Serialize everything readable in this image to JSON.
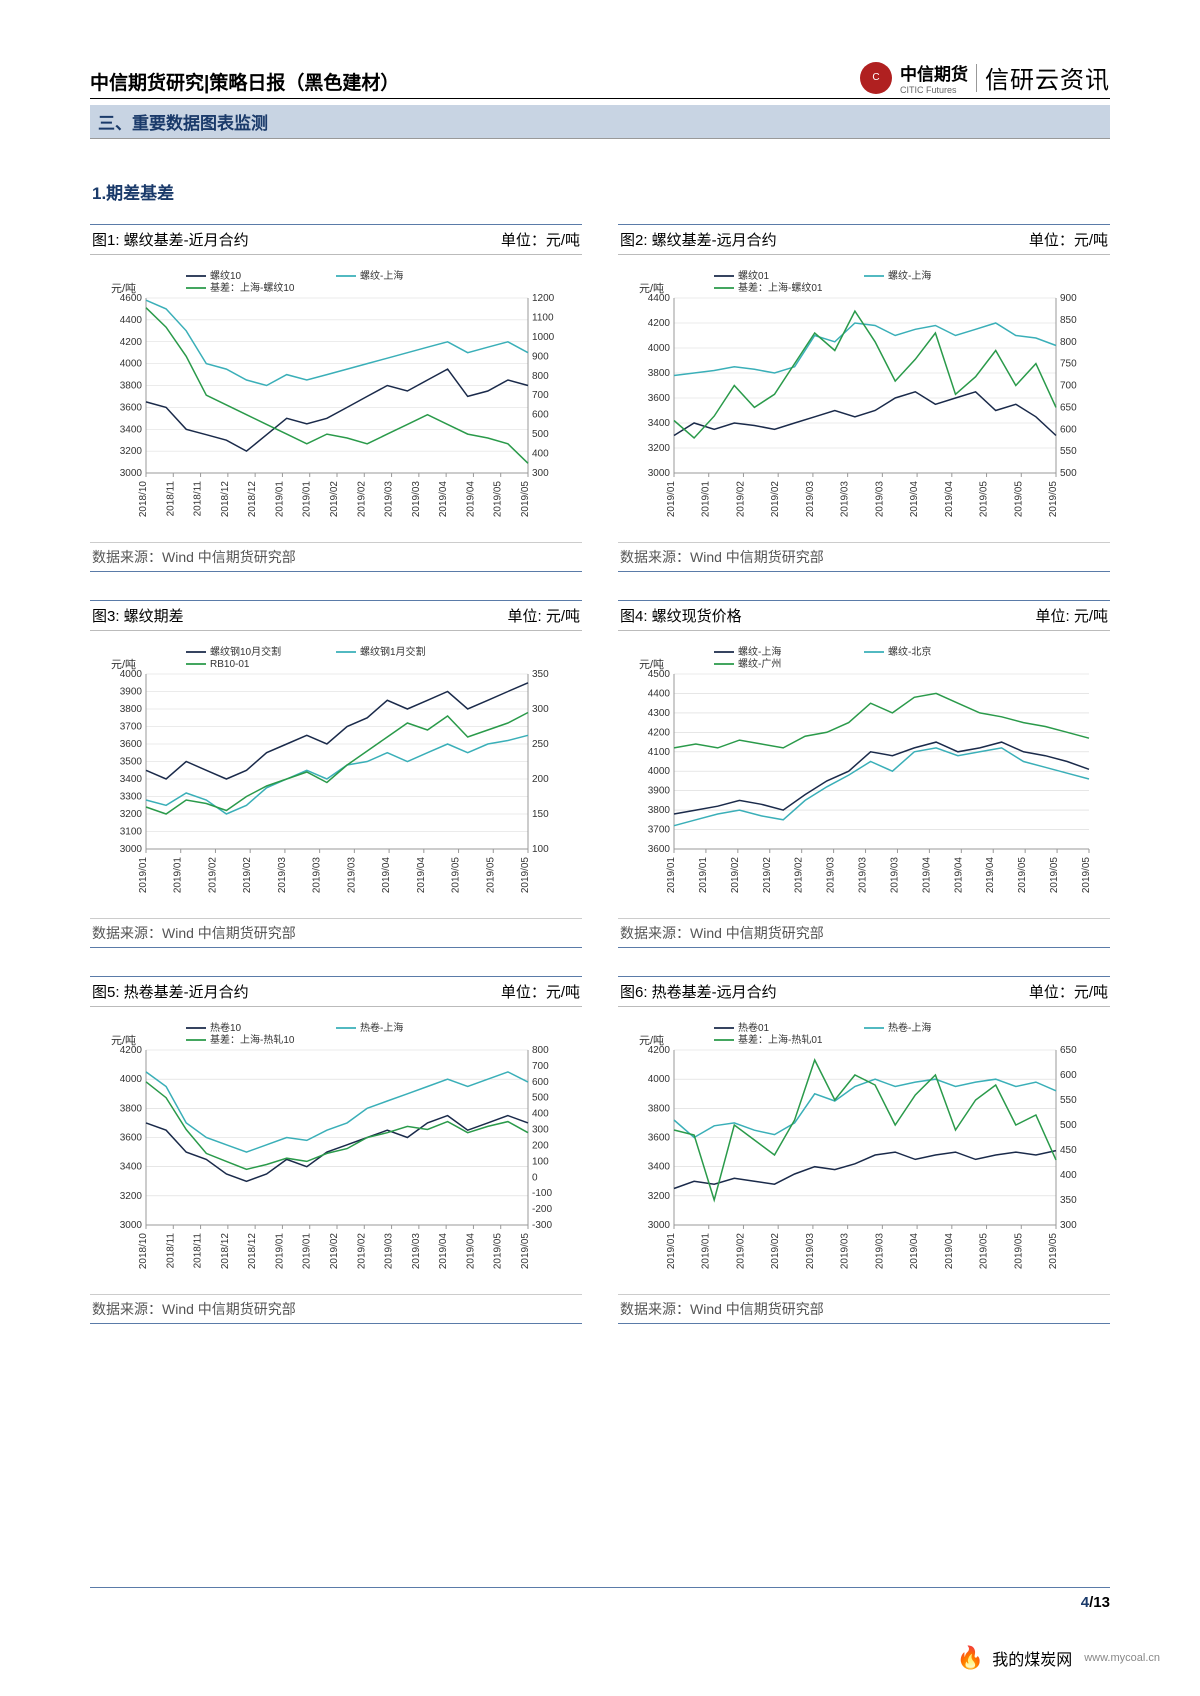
{
  "header": {
    "title": "中信期货研究|策略日报（黑色建材）",
    "logo_text": "中信期货",
    "logo_sub": "CITIC Futures",
    "brand": "信研云资讯"
  },
  "section_bar": "三、重要数据图表监测",
  "section_title": "1.期差基差",
  "data_source": "数据来源：Wind  中信期货研究部",
  "page": {
    "current": "4",
    "total": "/13"
  },
  "watermark": {
    "text": "我的煤炭网",
    "url": "www.mycoal.cn"
  },
  "colors": {
    "series_dark": "#1a2a4a",
    "series_cyan": "#3aafb8",
    "series_green": "#2a9a4a"
  },
  "charts": [
    {
      "title": "图1: 螺纹基差-近月合约",
      "unit": "单位：元/吨",
      "y_left_label": "元/吨",
      "y_left": {
        "min": 3000,
        "max": 4600,
        "step": 200
      },
      "y_right": {
        "min": 300,
        "max": 1200,
        "step": 100
      },
      "x_labels": [
        "2018/10",
        "2018/11",
        "2018/11",
        "2018/12",
        "2018/12",
        "2019/01",
        "2019/01",
        "2019/02",
        "2019/02",
        "2019/03",
        "2019/03",
        "2019/04",
        "2019/04",
        "2019/05",
        "2019/05"
      ],
      "series": [
        {
          "name": "螺纹10",
          "color": "#1a2a4a",
          "axis": "left",
          "values": [
            3650,
            3600,
            3400,
            3350,
            3300,
            3200,
            3350,
            3500,
            3450,
            3500,
            3600,
            3700,
            3800,
            3750,
            3850,
            3950,
            3700,
            3750,
            3850,
            3800
          ]
        },
        {
          "name": "螺纹-上海",
          "color": "#3aafb8",
          "axis": "left",
          "values": [
            4580,
            4500,
            4300,
            4000,
            3950,
            3850,
            3800,
            3900,
            3850,
            3900,
            3950,
            4000,
            4050,
            4100,
            4150,
            4200,
            4100,
            4150,
            4200,
            4100
          ]
        },
        {
          "name": "基差：上海-螺纹10",
          "color": "#2a9a4a",
          "axis": "right",
          "values": [
            1150,
            1050,
            900,
            700,
            650,
            600,
            550,
            500,
            450,
            500,
            480,
            450,
            500,
            550,
            600,
            550,
            500,
            480,
            450,
            350
          ]
        }
      ]
    },
    {
      "title": "图2: 螺纹基差-远月合约",
      "unit": "单位：元/吨",
      "y_left_label": "元/吨",
      "y_left": {
        "min": 3000,
        "max": 4400,
        "step": 200
      },
      "y_right": {
        "min": 500,
        "max": 900,
        "step": 50
      },
      "x_labels": [
        "2019/01",
        "2019/01",
        "2019/02",
        "2019/02",
        "2019/03",
        "2019/03",
        "2019/03",
        "2019/04",
        "2019/04",
        "2019/05",
        "2019/05",
        "2019/05"
      ],
      "series": [
        {
          "name": "螺纹01",
          "color": "#1a2a4a",
          "axis": "left",
          "values": [
            3300,
            3400,
            3350,
            3400,
            3380,
            3350,
            3400,
            3450,
            3500,
            3450,
            3500,
            3600,
            3650,
            3550,
            3600,
            3650,
            3500,
            3550,
            3450,
            3300
          ]
        },
        {
          "name": "螺纹-上海",
          "color": "#3aafb8",
          "axis": "left",
          "values": [
            3780,
            3800,
            3820,
            3850,
            3830,
            3800,
            3850,
            4100,
            4050,
            4200,
            4180,
            4100,
            4150,
            4180,
            4100,
            4150,
            4200,
            4100,
            4080,
            4020
          ]
        },
        {
          "name": "基差：上海-螺纹01",
          "color": "#2a9a4a",
          "axis": "right",
          "values": [
            620,
            580,
            630,
            700,
            650,
            680,
            750,
            820,
            780,
            870,
            800,
            710,
            760,
            820,
            680,
            720,
            780,
            700,
            750,
            650
          ]
        }
      ]
    },
    {
      "title": "图3: 螺纹期差",
      "unit": "单位: 元/吨",
      "y_left_label": "元/吨",
      "y_left": {
        "min": 3000,
        "max": 4000,
        "step": 100
      },
      "y_right": {
        "min": 100,
        "max": 350,
        "step": 50
      },
      "x_labels": [
        "2019/01",
        "2019/01",
        "2019/02",
        "2019/02",
        "2019/03",
        "2019/03",
        "2019/03",
        "2019/04",
        "2019/04",
        "2019/05",
        "2019/05",
        "2019/05"
      ],
      "series": [
        {
          "name": "螺纹钢10月交割",
          "color": "#1a2a4a",
          "axis": "left",
          "values": [
            3450,
            3400,
            3500,
            3450,
            3400,
            3450,
            3550,
            3600,
            3650,
            3600,
            3700,
            3750,
            3850,
            3800,
            3850,
            3900,
            3800,
            3850,
            3900,
            3950
          ]
        },
        {
          "name": "螺纹钢1月交割",
          "color": "#3aafb8",
          "axis": "left",
          "values": [
            3280,
            3250,
            3320,
            3280,
            3200,
            3250,
            3350,
            3400,
            3450,
            3400,
            3480,
            3500,
            3550,
            3500,
            3550,
            3600,
            3550,
            3600,
            3620,
            3650
          ]
        },
        {
          "name": "RB10-01",
          "color": "#2a9a4a",
          "axis": "right",
          "values": [
            160,
            150,
            170,
            165,
            155,
            175,
            190,
            200,
            210,
            195,
            220,
            240,
            260,
            280,
            270,
            290,
            260,
            270,
            280,
            295
          ]
        }
      ]
    },
    {
      "title": "图4: 螺纹现货价格",
      "unit": "单位: 元/吨",
      "y_left_label": "元/吨",
      "y_left": {
        "min": 3600,
        "max": 4500,
        "step": 100
      },
      "y_right": null,
      "x_labels": [
        "2019/01",
        "2019/01",
        "2019/02",
        "2019/02",
        "2019/02",
        "2019/03",
        "2019/03",
        "2019/03",
        "2019/04",
        "2019/04",
        "2019/04",
        "2019/05",
        "2019/05",
        "2019/05"
      ],
      "series": [
        {
          "name": "螺纹-上海",
          "color": "#1a2a4a",
          "axis": "left",
          "values": [
            3780,
            3800,
            3820,
            3850,
            3830,
            3800,
            3880,
            3950,
            4000,
            4100,
            4080,
            4120,
            4150,
            4100,
            4120,
            4150,
            4100,
            4080,
            4050,
            4010
          ]
        },
        {
          "name": "螺纹-北京",
          "color": "#3aafb8",
          "axis": "left",
          "values": [
            3720,
            3750,
            3780,
            3800,
            3770,
            3750,
            3850,
            3920,
            3980,
            4050,
            4000,
            4100,
            4120,
            4080,
            4100,
            4120,
            4050,
            4020,
            3990,
            3960
          ]
        },
        {
          "name": "螺纹-广州",
          "color": "#2a9a4a",
          "axis": "left",
          "values": [
            4120,
            4140,
            4120,
            4160,
            4140,
            4120,
            4180,
            4200,
            4250,
            4350,
            4300,
            4380,
            4400,
            4350,
            4300,
            4280,
            4250,
            4230,
            4200,
            4170
          ]
        }
      ]
    },
    {
      "title": "图5: 热卷基差-近月合约",
      "unit": "单位：元/吨",
      "y_left_label": "元/吨",
      "y_left": {
        "min": 3000,
        "max": 4200,
        "step": 200
      },
      "y_right": {
        "min": -300,
        "max": 800,
        "step": 100
      },
      "x_labels": [
        "2018/10",
        "2018/11",
        "2018/11",
        "2018/12",
        "2018/12",
        "2019/01",
        "2019/01",
        "2019/02",
        "2019/02",
        "2019/03",
        "2019/03",
        "2019/04",
        "2019/04",
        "2019/05",
        "2019/05"
      ],
      "series": [
        {
          "name": "热卷10",
          "color": "#1a2a4a",
          "axis": "left",
          "values": [
            3700,
            3650,
            3500,
            3450,
            3350,
            3300,
            3350,
            3450,
            3400,
            3500,
            3550,
            3600,
            3650,
            3600,
            3700,
            3750,
            3650,
            3700,
            3750,
            3700
          ]
        },
        {
          "name": "热卷-上海",
          "color": "#3aafb8",
          "axis": "left",
          "values": [
            4050,
            3950,
            3700,
            3600,
            3550,
            3500,
            3550,
            3600,
            3580,
            3650,
            3700,
            3800,
            3850,
            3900,
            3950,
            4000,
            3950,
            4000,
            4050,
            3980
          ]
        },
        {
          "name": "基差：上海-热轧10",
          "color": "#2a9a4a",
          "axis": "right",
          "values": [
            600,
            500,
            300,
            150,
            100,
            50,
            80,
            120,
            100,
            150,
            180,
            250,
            280,
            320,
            300,
            350,
            280,
            320,
            350,
            280
          ]
        }
      ]
    },
    {
      "title": "图6: 热卷基差-远月合约",
      "unit": "单位：元/吨",
      "y_left_label": "元/吨",
      "y_left": {
        "min": 3000,
        "max": 4200,
        "step": 200
      },
      "y_right": {
        "min": 300,
        "max": 650,
        "step": 50
      },
      "x_labels": [
        "2019/01",
        "2019/01",
        "2019/02",
        "2019/02",
        "2019/03",
        "2019/03",
        "2019/03",
        "2019/04",
        "2019/04",
        "2019/05",
        "2019/05",
        "2019/05"
      ],
      "series": [
        {
          "name": "热卷01",
          "color": "#1a2a4a",
          "axis": "left",
          "values": [
            3250,
            3300,
            3280,
            3320,
            3300,
            3280,
            3350,
            3400,
            3380,
            3420,
            3480,
            3500,
            3450,
            3480,
            3500,
            3450,
            3480,
            3500,
            3480,
            3510
          ]
        },
        {
          "name": "热卷-上海",
          "color": "#3aafb8",
          "axis": "left",
          "values": [
            3720,
            3600,
            3680,
            3700,
            3650,
            3620,
            3700,
            3900,
            3850,
            3950,
            4000,
            3950,
            3980,
            4000,
            3950,
            3980,
            4000,
            3950,
            3980,
            3920
          ]
        },
        {
          "name": "基差：上海-热轧01",
          "color": "#2a9a4a",
          "axis": "right",
          "values": [
            490,
            480,
            350,
            500,
            470,
            440,
            510,
            630,
            550,
            600,
            580,
            500,
            560,
            600,
            490,
            550,
            580,
            500,
            520,
            430
          ]
        }
      ]
    }
  ]
}
